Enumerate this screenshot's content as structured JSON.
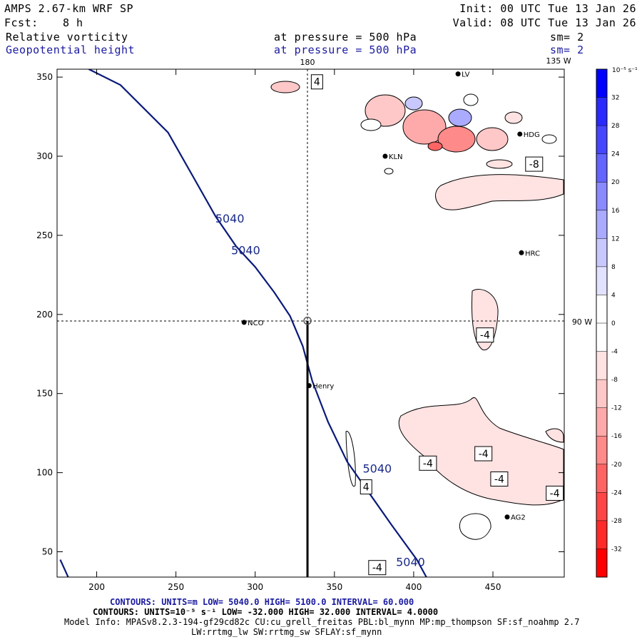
{
  "header": {
    "model": "AMPS 2.67-km WRF SP",
    "fcst_label": "Fcst:",
    "fcst_value": "8 h",
    "init": "Init: 00 UTC Tue 13 Jan 26",
    "valid": "Valid: 08 UTC Tue 13 Jan 26",
    "field1": "Relative vorticity",
    "field1_level": "at pressure =  500 hPa",
    "field1_sm": "sm= 2",
    "field2": "Geopotential height",
    "field2_level": "at pressure =  500 hPa",
    "field2_sm": "sm= 2"
  },
  "map_labels": {
    "lon_180": "180",
    "lon_135w": "135 W",
    "lon_90w": "90 W"
  },
  "stations": [
    {
      "name": "NCO",
      "x": 293,
      "y": 195
    },
    {
      "name": "Henry",
      "x": 334,
      "y": 155
    },
    {
      "name": "KLN",
      "x": 382,
      "y": 300
    },
    {
      "name": "HDG",
      "x": 467,
      "y": 314
    },
    {
      "name": "HRC",
      "x": 468,
      "y": 239
    },
    {
      "name": "AG2",
      "x": 459,
      "y": 72
    },
    {
      "name": "LV",
      "x": 428,
      "y": 352
    }
  ],
  "contour_labels": [
    {
      "text": "5040",
      "x": 284,
      "y": 258,
      "cls": "z"
    },
    {
      "text": "5040",
      "x": 294,
      "y": 238,
      "cls": "z"
    },
    {
      "text": "5040",
      "x": 377,
      "y": 100,
      "cls": "z"
    },
    {
      "text": "5040",
      "x": 398,
      "y": 41,
      "cls": "z"
    },
    {
      "text": "4",
      "x": 339,
      "y": 347,
      "cls": "box"
    },
    {
      "text": "-8",
      "x": 476,
      "y": 295,
      "cls": "box"
    },
    {
      "text": "-4",
      "x": 445,
      "y": 187,
      "cls": "box"
    },
    {
      "text": "-4",
      "x": 444,
      "y": 112,
      "cls": "box"
    },
    {
      "text": "-4",
      "x": 409,
      "y": 106,
      "cls": "box"
    },
    {
      "text": "-4",
      "x": 454,
      "y": 96,
      "cls": "box"
    },
    {
      "text": "-4",
      "x": 489,
      "y": 87,
      "cls": "box"
    },
    {
      "text": "4",
      "x": 370,
      "y": 91,
      "cls": "box"
    },
    {
      "text": "-4",
      "x": 377,
      "y": 40,
      "cls": "box"
    }
  ],
  "colorbar": {
    "unit": "10⁻⁵ s⁻¹",
    "ticks": [
      "32",
      "28",
      "24",
      "20",
      "16",
      "12",
      "8",
      "4",
      "0",
      "-4",
      "-8",
      "-12",
      "-16",
      "-20",
      "-24",
      "-28",
      "-32"
    ],
    "colors": [
      "#0000ff",
      "#2a2aff",
      "#4646ff",
      "#6464ff",
      "#8a8aff",
      "#aaaaff",
      "#c8c8ff",
      "#e2e2ff",
      "#ffffff",
      "#ffffff",
      "#ffe2e2",
      "#ffc8c8",
      "#ffaaaa",
      "#ff8a8a",
      "#ff6464",
      "#ff4646",
      "#ff2a2a",
      "#ff0000"
    ]
  },
  "chart_data": {
    "type": "contour",
    "title": "Relative vorticity / Geopotential height at 500 hPa",
    "xlim": [
      175,
      495
    ],
    "ylim": [
      34,
      355
    ],
    "x_ticks": [
      200,
      250,
      300,
      350,
      400,
      450
    ],
    "y_ticks": [
      50,
      100,
      150,
      200,
      250,
      300,
      350
    ],
    "height_contour_5040": [
      [
        177,
        45
      ],
      [
        182,
        34
      ],
      [
        195,
        355
      ],
      [
        215,
        345
      ],
      [
        245,
        315
      ],
      [
        262,
        285
      ],
      [
        275,
        262
      ],
      [
        288,
        243
      ],
      [
        300,
        230
      ],
      [
        312,
        214
      ],
      [
        322,
        199
      ],
      [
        330,
        180
      ],
      [
        336,
        158
      ],
      [
        346,
        132
      ],
      [
        358,
        107
      ],
      [
        372,
        87
      ],
      [
        386,
        67
      ],
      [
        402,
        45
      ],
      [
        408,
        34
      ]
    ],
    "cross_section_line": {
      "x": 333,
      "y_from": 34,
      "y_to": 196
    },
    "crosshair": {
      "x": 333,
      "y": 196
    }
  },
  "footer": {
    "line1": "CONTOURS:  UNITS=m  LOW=  5040.0      HIGH=  5100.0      INTERVAL=   60.000",
    "line2": "CONTOURS:  UNITS=10⁻⁵ s⁻¹  LOW=  -32.000      HIGH=  32.000      INTERVAL=   4.0000",
    "line3": "Model Info: MPASv8.2.3-194-gf29cd82c CU:cu_grell_freitas PBL:bl_mynn MP:mp_thompson SF:sf_noahmp 2.7",
    "line4": "LW:rrtmg_lw SW:rrtmg_sw SFLAY:sf_mynn"
  }
}
